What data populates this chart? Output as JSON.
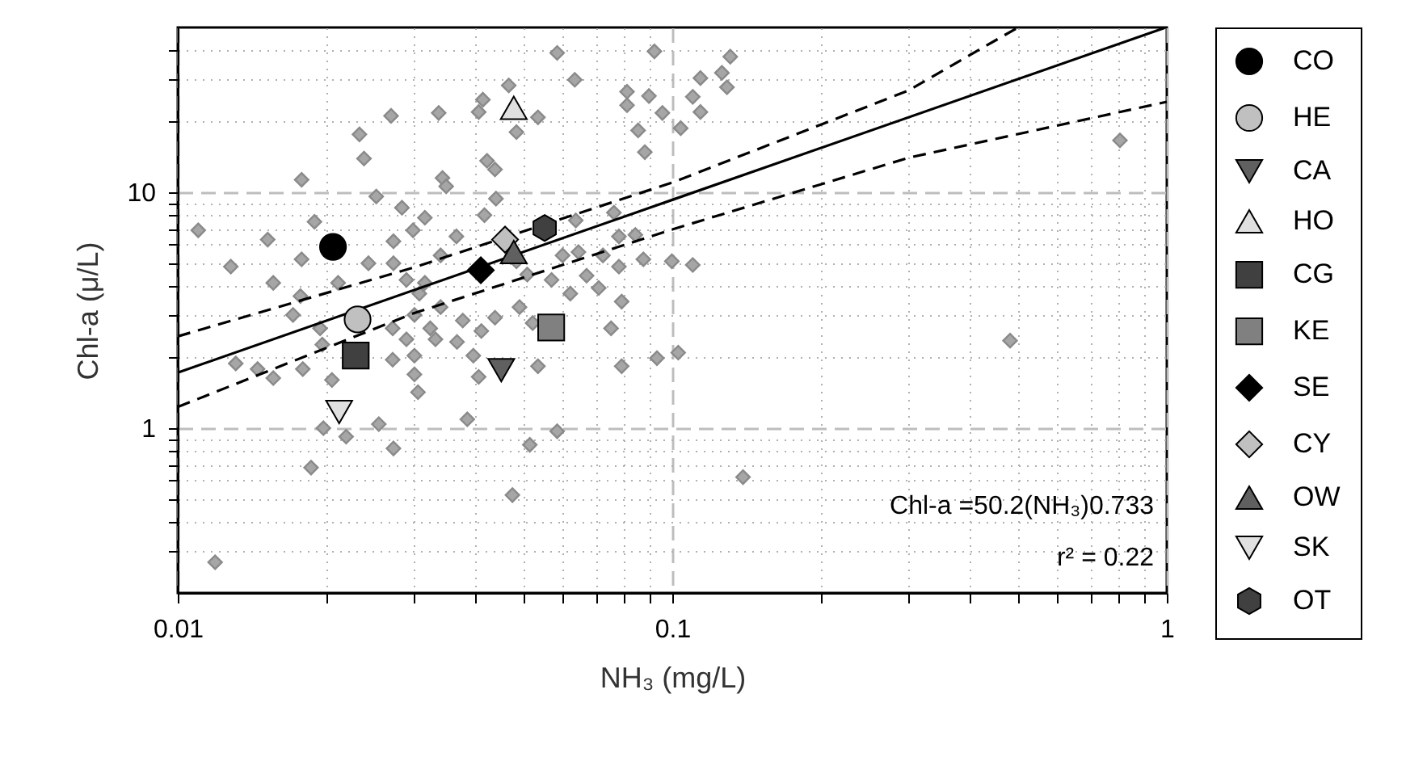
{
  "chart_data": {
    "type": "scatter",
    "xlabel": "NH₃ (mg/L)",
    "ylabel": "Chl-a (μ/L)",
    "annotations": [
      "Chl-a =50.2(NH₃)0.733",
      "r² = 0.22"
    ],
    "xlim": [
      0.01,
      1
    ],
    "ylim": [
      0.2,
      50
    ],
    "xticks": [
      0.01,
      {
        "value": 0.02,
        "label": null
      },
      {
        "value": 0.03,
        "label": null
      },
      {
        "value": 0.04,
        "label": null
      },
      {
        "value": 0.05,
        "label": null
      },
      {
        "value": 0.06,
        "label": null
      },
      {
        "value": 0.07,
        "label": null
      },
      {
        "value": 0.08,
        "label": null
      },
      {
        "value": 0.09,
        "label": null
      },
      0.1,
      {
        "value": 0.2,
        "label": null
      },
      {
        "value": 0.3,
        "label": null
      },
      {
        "value": 0.4,
        "label": null
      },
      {
        "value": 0.5,
        "label": null
      },
      {
        "value": 0.6,
        "label": null
      },
      {
        "value": 0.7,
        "label": null
      },
      {
        "value": 0.8,
        "label": null
      },
      {
        "value": 0.9,
        "label": null
      },
      1
    ],
    "yticks": [
      {
        "value": 0.3,
        "label": null
      },
      {
        "value": 0.4,
        "label": null
      },
      {
        "value": 0.5,
        "label": null
      },
      {
        "value": 0.6,
        "label": null
      },
      {
        "value": 0.7,
        "label": null
      },
      {
        "value": 0.8,
        "label": null
      },
      {
        "value": 0.9,
        "label": null
      },
      1,
      {
        "value": 2,
        "label": null
      },
      {
        "value": 3,
        "label": null
      },
      {
        "value": 4,
        "label": null
      },
      {
        "value": 5,
        "label": null
      },
      {
        "value": 6,
        "label": null
      },
      {
        "value": 7,
        "label": null
      },
      {
        "value": 8,
        "label": null
      },
      {
        "value": 9,
        "label": null
      },
      10,
      {
        "value": 20,
        "label": null
      },
      {
        "value": 30,
        "label": null
      },
      {
        "value": 40,
        "label": null
      }
    ],
    "log": "xy",
    "grid": true,
    "legend": "right",
    "series": [
      {
        "color": "#a6a6a6",
        "marker": "diamond",
        "x": [
          0.0585,
          0.092,
          0.0635,
          0.0414,
          0.0467,
          0.081,
          0.0897,
          0.027,
          0.0337,
          0.0406,
          0.0535,
          0.0484,
          0.081,
          0.0955,
          0.0853,
          0.0233,
          0.0238,
          0.0422,
          0.0438,
          0.088,
          0.0178,
          0.0343,
          0.0349,
          0.0252,
          0.044,
          0.0284,
          0.0189,
          0.0316,
          0.0299,
          0.0417,
          0.011,
          0.0152,
          0.0273,
          0.0366,
          0.034,
          0.0128,
          0.0156,
          0.0178,
          0.0243,
          0.0273,
          0.0211,
          0.029,
          0.0316,
          0.0484,
          0.0509,
          0.057,
          0.06,
          0.0646,
          0.0671,
          0.071,
          0.0724,
          0.078,
          0.0842,
          0.0874,
          0.078,
          0.079,
          0.0622,
          0.0638,
          0.0762,
          0.0998,
          0.0171,
          0.0177,
          0.0194,
          0.0272,
          0.0301,
          0.0308,
          0.034,
          0.0377,
          0.0411,
          0.0324,
          0.029,
          0.0332,
          0.0367,
          0.0438,
          0.0491,
          0.0522,
          0.0752,
          0.0145,
          0.0131,
          0.0272,
          0.0301,
          0.0396,
          0.0535,
          0.079,
          0.0931,
          0.0196,
          0.0179,
          0.0156,
          0.0205,
          0.0301,
          0.0306,
          0.0406,
          0.0197,
          0.0219,
          0.0255,
          0.0273,
          0.0385,
          0.0515,
          0.0585,
          0.0186,
          0.0475,
          0.0119,
          0.131,
          0.126,
          0.114,
          0.129,
          0.11,
          0.114,
          0.104,
          0.804,
          0.11,
          0.1028,
          0.482,
          0.139
        ],
        "values": [
          39,
          39.6,
          30,
          24.7,
          28.4,
          26.7,
          25.6,
          21.1,
          21.7,
          21.9,
          20.8,
          18,
          23.4,
          21.7,
          18.3,
          17.6,
          13.9,
          13.6,
          12.5,
          14.8,
          11.3,
          11.5,
          10.6,
          9.6,
          9.4,
          8.6,
          7.5,
          7.8,
          6.9,
          8.0,
          6.9,
          6.3,
          6.2,
          6.5,
          5.4,
          4.84,
          4.13,
          5.2,
          5.0,
          5.0,
          4.13,
          4.25,
          4.13,
          5.1,
          4.48,
          4.25,
          5.4,
          5.58,
          4.43,
          3.93,
          5.4,
          6.5,
          6.6,
          5.2,
          4.84,
          3.44,
          3.72,
          7.6,
          8.2,
          5.1,
          3.02,
          3.63,
          2.65,
          2.65,
          3.02,
          3.72,
          3.26,
          2.86,
          2.58,
          2.65,
          2.38,
          2.38,
          2.32,
          2.94,
          3.26,
          2.79,
          2.65,
          1.78,
          1.88,
          1.95,
          2.03,
          2.03,
          1.83,
          1.83,
          1.98,
          2.26,
          1.78,
          1.63,
          1.6,
          1.69,
          1.42,
          1.65,
          1.0,
          0.92,
          1.04,
          0.82,
          1.09,
          0.85,
          0.97,
          0.68,
          0.52,
          0.27,
          37.6,
          32.1,
          30.5,
          27.9,
          25.4,
          21.9,
          18.7,
          16.6,
          4.92,
          2.09,
          2.35,
          0.62
        ]
      },
      {
        "type": "line",
        "color": "#000000",
        "line_style": "solid",
        "x": [
          0.01,
          0.1,
          0.99
        ],
        "values": [
          1.72,
          9.29,
          49.8
        ]
      },
      {
        "type": "line",
        "color": "#000000",
        "line_style": "dashed",
        "x": [
          0.01,
          0.03,
          0.1,
          0.3,
          0.5
        ],
        "values": [
          2.45,
          4.8,
          11,
          27,
          50
        ]
      },
      {
        "type": "line",
        "color": "#000000",
        "line_style": "dashed",
        "x": [
          0.01,
          0.03,
          0.1,
          0.3,
          1
        ],
        "values": [
          1.23,
          3.07,
          6.96,
          14,
          24.2
        ]
      },
      {
        "name": "CO",
        "color": "#000000",
        "marker": "circle",
        "x": [
          0.0206
        ],
        "values": [
          5.87
        ]
      },
      {
        "name": "HE",
        "color": "#c0c0c0",
        "marker": "circle",
        "x": [
          0.0231
        ],
        "values": [
          2.89
        ]
      },
      {
        "name": "CA",
        "color": "#606060",
        "marker": "triangle-down",
        "x": [
          0.0451
        ],
        "values": [
          1.76
        ]
      },
      {
        "name": "HO",
        "color": "#e0e0e0",
        "marker": "triangle",
        "x": [
          0.0478
        ],
        "values": [
          22.8
        ]
      },
      {
        "name": "CG",
        "color": "#404040",
        "marker": "square",
        "x": [
          0.0229
        ],
        "values": [
          2.03
        ]
      },
      {
        "name": "KE",
        "color": "#808080",
        "marker": "square",
        "x": [
          0.0569
        ],
        "values": [
          2.67
        ]
      },
      {
        "name": "SE",
        "color": "#000000",
        "marker": "diamond",
        "x": [
          0.041
        ],
        "values": [
          4.67
        ]
      },
      {
        "name": "CY",
        "color": "#c0c0c0",
        "marker": "diamond",
        "x": [
          0.0459
        ],
        "values": [
          6.3
        ]
      },
      {
        "name": "OW",
        "color": "#606060",
        "marker": "triangle",
        "x": [
          0.0478
        ],
        "values": [
          5.58
        ]
      },
      {
        "name": "SK",
        "color": "#e0e0e0",
        "marker": "triangle-down",
        "x": [
          0.0212
        ],
        "values": [
          1.17
        ]
      },
      {
        "name": "OT",
        "color": "#404040",
        "x": [
          0.0552
        ],
        "values": [
          7.06
        ]
      }
    ]
  }
}
